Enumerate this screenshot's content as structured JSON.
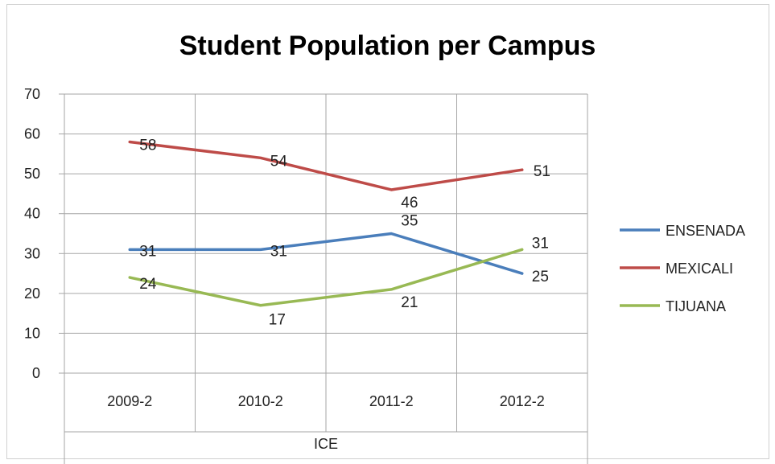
{
  "chart_data": {
    "type": "line",
    "title": "Student Population per Campus",
    "categories": [
      "2009-2",
      "2010-2",
      "2011-2",
      "2012-2"
    ],
    "group_label": "ICE",
    "ylim": [
      0,
      70
    ],
    "yticks": [
      0,
      10,
      20,
      30,
      40,
      50,
      60,
      70
    ],
    "grid": true,
    "legend_position": "right",
    "series": [
      {
        "name": "ENSENADA",
        "color": "#4a7ebb",
        "values": [
          31,
          31,
          35,
          25
        ]
      },
      {
        "name": "MEXICALI",
        "color": "#be4b48",
        "values": [
          58,
          54,
          46,
          51
        ]
      },
      {
        "name": "TIJUANA",
        "color": "#98b954",
        "values": [
          24,
          17,
          21,
          31
        ]
      }
    ]
  }
}
